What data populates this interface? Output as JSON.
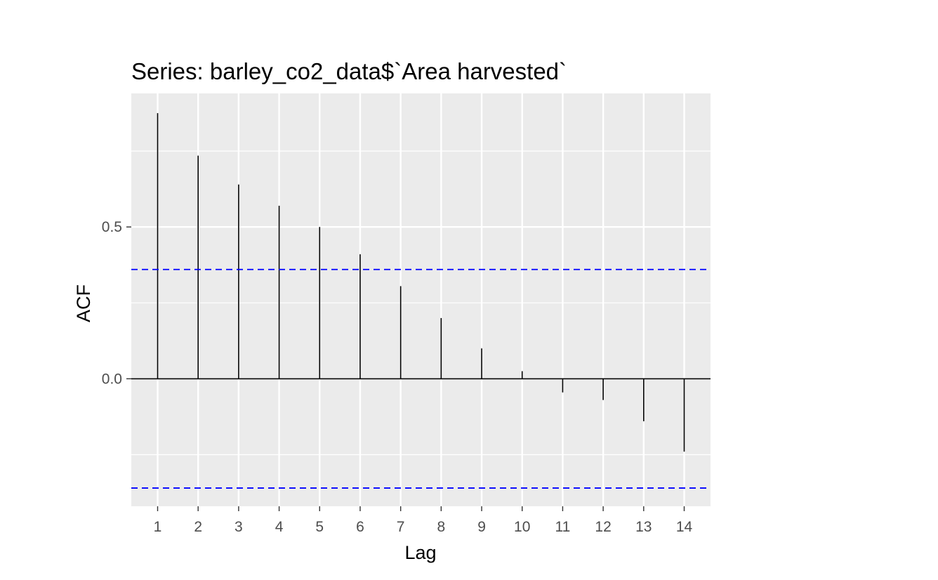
{
  "chart_data": {
    "type": "bar",
    "title": "Series: barley_co2_data$`Area harvested`",
    "xlabel": "Lag",
    "ylabel": "ACF",
    "x": [
      1,
      2,
      3,
      4,
      5,
      6,
      7,
      8,
      9,
      10,
      11,
      12,
      13,
      14
    ],
    "x_tick_labels": [
      "1",
      "2",
      "3",
      "4",
      "5",
      "6",
      "7",
      "8",
      "9",
      "10",
      "11",
      "12",
      "13",
      "14"
    ],
    "series": [
      {
        "values": [
          0.875,
          0.735,
          0.64,
          0.57,
          0.5,
          0.41,
          0.305,
          0.2,
          0.1,
          0.025,
          -0.045,
          -0.07,
          -0.14,
          -0.24
        ]
      }
    ],
    "confidence_bounds": [
      0.36,
      -0.36
    ],
    "xlim": [
      0.35,
      14.65
    ],
    "ylim": [
      -0.42,
      0.94
    ],
    "y_ticks": [
      0.0,
      0.5
    ],
    "y_tick_labels": [
      "0.0",
      "0.5"
    ],
    "grid": true,
    "colors": {
      "panel_background": "#ebebeb",
      "grid": "#ffffff",
      "bars": "#000000",
      "confidence_line": "#0000ff"
    }
  }
}
